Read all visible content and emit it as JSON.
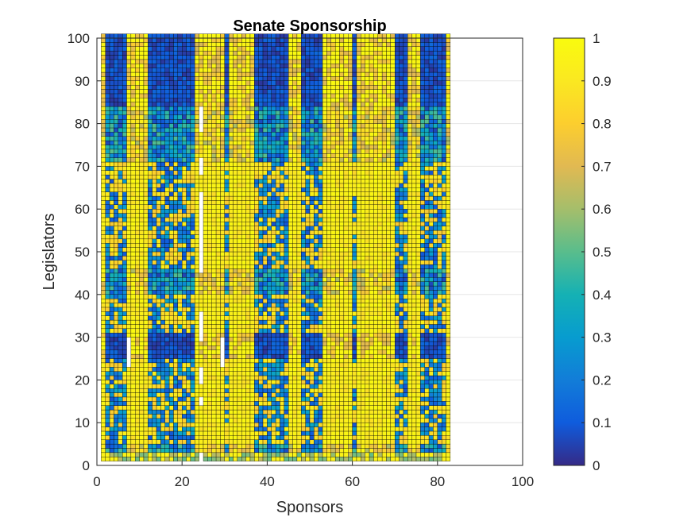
{
  "chart_data": {
    "type": "heatmap",
    "title": "Senate Sponsorship",
    "xlabel": "Sponsors",
    "ylabel": "Legislators",
    "xlim": [
      0,
      100
    ],
    "ylim": [
      0,
      100
    ],
    "x_ticks": [
      "0",
      "20",
      "40",
      "60",
      "80",
      "100"
    ],
    "y_ticks": [
      "0",
      "10",
      "20",
      "30",
      "40",
      "50",
      "60",
      "70",
      "80",
      "90",
      "100"
    ],
    "grid": true,
    "n_sponsors": 82,
    "n_legislators": 100,
    "colormap": "parula",
    "colorbar": {
      "range": [
        0,
        1
      ],
      "ticks": [
        "0",
        "0.1",
        "0.2",
        "0.3",
        "0.4",
        "0.5",
        "0.6",
        "0.7",
        "0.8",
        "0.9",
        "1"
      ],
      "placement": "right"
    },
    "missing_cells": [
      {
        "sponsor": 24,
        "legislators": [
          1,
          2
        ]
      },
      {
        "sponsor": 24,
        "legislators": [
          14,
          15
        ]
      },
      {
        "sponsor": 24,
        "legislators": [
          19,
          22
        ]
      },
      {
        "sponsor": 24,
        "legislators": [
          29,
          35
        ]
      },
      {
        "sponsor": 24,
        "legislators": [
          45,
          63
        ]
      },
      {
        "sponsor": 24,
        "legislators": [
          68,
          71
        ]
      },
      {
        "sponsor": 24,
        "legislators": [
          78,
          83
        ]
      },
      {
        "sponsor": 7,
        "legislators": [
          23,
          29
        ]
      },
      {
        "sponsor": 29,
        "legislators": [
          23,
          29
        ]
      }
    ],
    "approx_structure": {
      "low_value_sponsor_columns": [
        2,
        3,
        4,
        5,
        6,
        12,
        13,
        14,
        15,
        16,
        17,
        18,
        19,
        20,
        21,
        22,
        30,
        37,
        38,
        39,
        40,
        41,
        42,
        43,
        44,
        48,
        49,
        50,
        51,
        52,
        60,
        70,
        71,
        72,
        76,
        77,
        78,
        79,
        80,
        81
      ],
      "low_value_legislator_rows": [
        25,
        26,
        27,
        28,
        29,
        30,
        84,
        85,
        86,
        87,
        88,
        89,
        90,
        91,
        92,
        93,
        94,
        95,
        96,
        97,
        98,
        99,
        100
      ],
      "high_value_legislator_rows": [
        5,
        6,
        7,
        8,
        9,
        10,
        11,
        12,
        13,
        14,
        15,
        16,
        17,
        18,
        19,
        20,
        21,
        22,
        23,
        24,
        31,
        32,
        33,
        34,
        35,
        36,
        37,
        38,
        39,
        46,
        47,
        48,
        49,
        50,
        51,
        52,
        53,
        54,
        55,
        56,
        57,
        58,
        59,
        60,
        61,
        62,
        63,
        64,
        65,
        66,
        67,
        68,
        69,
        70
      ]
    }
  }
}
